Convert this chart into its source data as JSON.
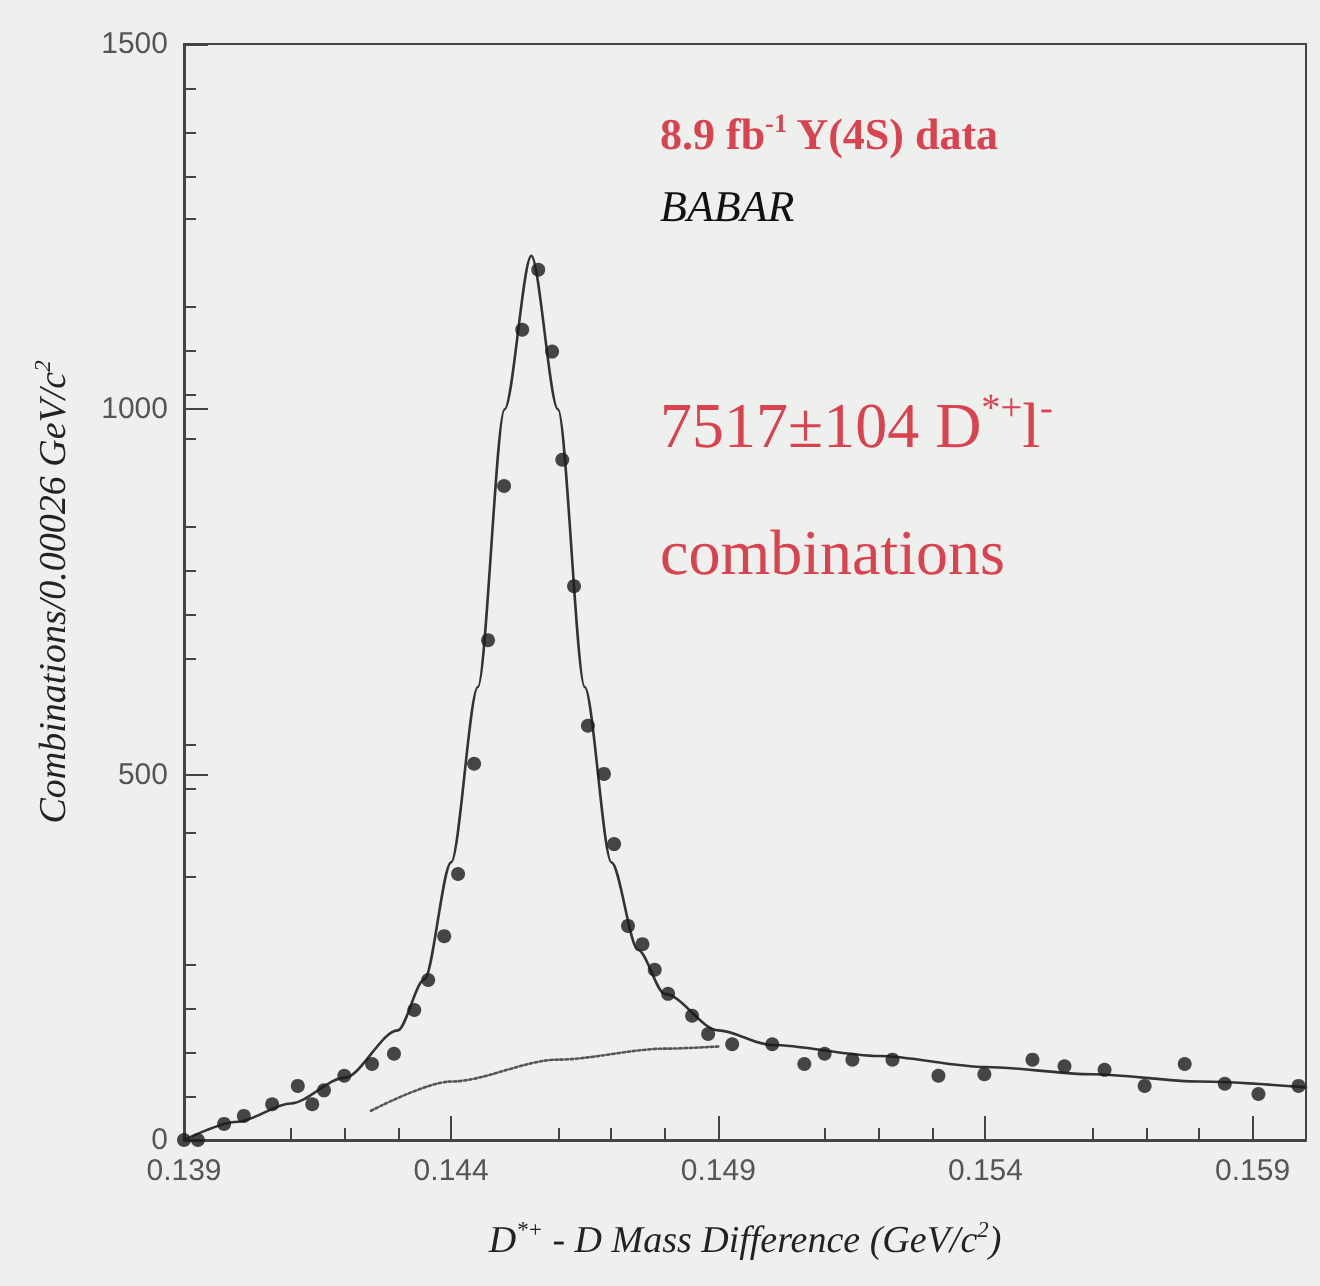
{
  "chart_data": {
    "type": "scatter",
    "xlabel": "D$^{*+}$ - D Mass Difference (GeV/c$^{2}$)",
    "ylabel": "Combinations/0.00026 GeV/c$^{2}$",
    "annotations": [
      "8.9 fb$^{-1}$ Υ(4S) data",
      "BABAR",
      "7517±104 D$^{*+}$l$^{-}$",
      "combinations"
    ],
    "xlim": [
      0.139,
      0.16
    ],
    "xticks": [
      0.139,
      0.144,
      0.149,
      0.154,
      0.159
    ],
    "ylim": [
      0,
      1500
    ],
    "yticks": [
      0,
      500,
      1000,
      1500
    ],
    "grid": false,
    "marker": "circle",
    "series": [
      {
        "color": "#1a1a1a",
        "x": [
          0.139,
          0.13926,
          0.13975,
          0.14012,
          0.14065,
          0.14113,
          0.1414,
          0.14162,
          0.142,
          0.14252,
          0.14293,
          0.14331,
          0.14357,
          0.14387,
          0.14413,
          0.14443,
          0.14469,
          0.14499,
          0.14533,
          0.14563,
          0.14589,
          0.14608,
          0.1463,
          0.14656,
          0.14686,
          0.14705,
          0.14731,
          0.14758,
          0.14781,
          0.14806,
          0.14851,
          0.14881,
          0.14926,
          0.15001,
          0.15061,
          0.15099,
          0.15151,
          0.15226,
          0.15312,
          0.15398,
          0.15488,
          0.15548,
          0.15623,
          0.15698,
          0.15773,
          0.15848,
          0.15911,
          0.15986
        ],
        "values": [
          0,
          0,
          22,
          33,
          49,
          74,
          49,
          68,
          88,
          104,
          118,
          178,
          219,
          279,
          364,
          515,
          684,
          895,
          1109,
          1191,
          1079,
          931,
          758,
          567,
          501,
          405,
          293,
          268,
          233,
          200,
          170,
          145,
          131,
          131,
          104,
          118,
          110,
          110,
          88,
          90,
          110,
          101,
          96,
          74,
          104,
          77,
          63,
          74
        ]
      },
      {
        "type": "line",
        "color": "#333333",
        "marker": "none",
        "line_style": "solid",
        "x": [
          0.139,
          0.14,
          0.141,
          0.142,
          0.143,
          0.1435,
          0.144,
          0.1445,
          0.145,
          0.1455,
          0.146,
          0.1465,
          0.147,
          0.1475,
          0.148,
          0.149,
          0.15,
          0.152,
          0.154,
          0.156,
          0.158,
          0.16
        ],
        "values": [
          0,
          25,
          50,
          85,
          150,
          220,
          380,
          620,
          1000,
          1210,
          1000,
          620,
          380,
          260,
          200,
          150,
          130,
          115,
          100,
          90,
          80,
          72
        ]
      },
      {
        "type": "line",
        "color": "#555555",
        "marker": "none",
        "line_style": "dotted",
        "x": [
          0.1425,
          0.144,
          0.146,
          0.148,
          0.149
        ],
        "values": [
          40,
          80,
          110,
          125,
          128
        ]
      }
    ]
  }
}
